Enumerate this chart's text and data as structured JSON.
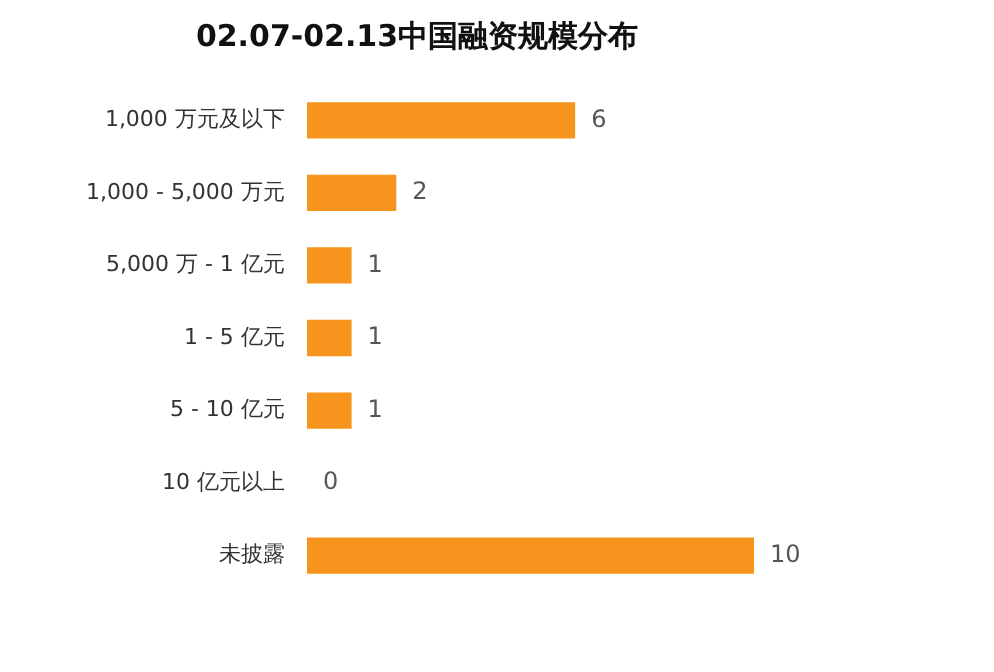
{
  "chart_data": {
    "type": "bar",
    "orientation": "horizontal",
    "title": "02.07-02.13中国融资规模分布",
    "categories": [
      "1,000 万元及以下",
      "1,000 - 5,000 万元",
      "5,000 万 - 1 亿元",
      "1 - 5 亿元",
      "5 - 10 亿元",
      "10 亿元以上",
      "未披露"
    ],
    "values": [
      6,
      2,
      1,
      1,
      1,
      0,
      10
    ],
    "color": "#f7941d",
    "data_labels": true
  }
}
